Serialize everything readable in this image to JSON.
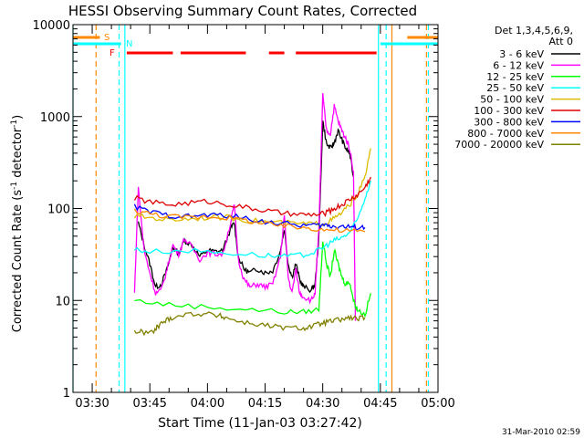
{
  "chart_data": {
    "type": "line",
    "title": "HESSI Observing Summary Count Rates, Corrected",
    "xlabel": "Start Time (11-Jan-03 03:27:42)",
    "ylabel_main": "Corrected Count Rate (s",
    "ylabel_sup1": "-1",
    "ylabel_mid": " detector",
    "ylabel_sup2": "-1",
    "ylabel_end": ")",
    "ylog": true,
    "x_domain_minutes": [
      0,
      95
    ],
    "ylim": [
      1,
      10000
    ],
    "x_ticks": [
      {
        "m": 5,
        "label": "03:30"
      },
      {
        "m": 20,
        "label": "03:45"
      },
      {
        "m": 35,
        "label": "04:00"
      },
      {
        "m": 50,
        "label": "04:15"
      },
      {
        "m": 65,
        "label": "04:30"
      },
      {
        "m": 80,
        "label": "04:45"
      },
      {
        "m": 95,
        "label": "05:00"
      }
    ],
    "y_ticks": [
      {
        "v": 1,
        "label": "1"
      },
      {
        "v": 10,
        "label": "10"
      },
      {
        "v": 100,
        "label": "100"
      },
      {
        "v": 1000,
        "label": "1000"
      },
      {
        "v": 10000,
        "label": "10000"
      }
    ],
    "legend_header": [
      "Det 1,3,4,5,6,9,",
      "Att 0"
    ],
    "series": [
      {
        "name": "3 - 6 keV",
        "color": "#000000",
        "points": [
          [
            17,
            70
          ],
          [
            18.5,
            40
          ],
          [
            20,
            25
          ],
          [
            21.5,
            14
          ],
          [
            23,
            15
          ],
          [
            24.5,
            22
          ],
          [
            26,
            38
          ],
          [
            27.5,
            32
          ],
          [
            29,
            45
          ],
          [
            31,
            40
          ],
          [
            33,
            30
          ],
          [
            35,
            35
          ],
          [
            37,
            34
          ],
          [
            39,
            35
          ],
          [
            41,
            60
          ],
          [
            42,
            70
          ],
          [
            43,
            30
          ],
          [
            44.5,
            22
          ],
          [
            46,
            20
          ],
          [
            48,
            22
          ],
          [
            50,
            20
          ],
          [
            52,
            21
          ],
          [
            54,
            35
          ],
          [
            55,
            60
          ],
          [
            56,
            25
          ],
          [
            57,
            18
          ],
          [
            58,
            25
          ],
          [
            59,
            17
          ],
          [
            60,
            14
          ],
          [
            62,
            13
          ],
          [
            63,
            15
          ],
          [
            64,
            50
          ],
          [
            65,
            900
          ],
          [
            66,
            500
          ],
          [
            67,
            450
          ],
          [
            68,
            520
          ],
          [
            69,
            700
          ],
          [
            70,
            560
          ],
          [
            71,
            450
          ],
          [
            72,
            400
          ],
          [
            73,
            220
          ]
        ]
      },
      {
        "name": "6 - 12 keV",
        "color": "#ff00ff",
        "points": [
          [
            16,
            12
          ],
          [
            17,
            170
          ],
          [
            18.5,
            35
          ],
          [
            20,
            20
          ],
          [
            21.5,
            12
          ],
          [
            23,
            13
          ],
          [
            24.5,
            22
          ],
          [
            26,
            40
          ],
          [
            27.5,
            32
          ],
          [
            29,
            47
          ],
          [
            31,
            38
          ],
          [
            33,
            28
          ],
          [
            35,
            33
          ],
          [
            37,
            32
          ],
          [
            39,
            32
          ],
          [
            41,
            70
          ],
          [
            42,
            110
          ],
          [
            43,
            28
          ],
          [
            44.5,
            17
          ],
          [
            46,
            14
          ],
          [
            48,
            15
          ],
          [
            50,
            14
          ],
          [
            52,
            15
          ],
          [
            54,
            30
          ],
          [
            55,
            85
          ],
          [
            56,
            18
          ],
          [
            57,
            12
          ],
          [
            58,
            22
          ],
          [
            59,
            12
          ],
          [
            60,
            11
          ],
          [
            62,
            10
          ],
          [
            63,
            12
          ],
          [
            64,
            60
          ],
          [
            65,
            1700
          ],
          [
            66,
            700
          ],
          [
            67,
            650
          ],
          [
            68,
            1300
          ],
          [
            69,
            900
          ],
          [
            70,
            700
          ],
          [
            71,
            580
          ],
          [
            72,
            450
          ],
          [
            73,
            250
          ],
          [
            73.5,
            6
          ]
        ]
      },
      {
        "name": "12 - 25 keV",
        "color": "#00ff00",
        "points": [
          [
            16,
            10
          ],
          [
            25,
            9
          ],
          [
            35,
            8.5
          ],
          [
            45,
            8
          ],
          [
            55,
            7.5
          ],
          [
            60,
            7.5
          ],
          [
            64,
            8
          ],
          [
            65,
            45
          ],
          [
            66,
            25
          ],
          [
            67,
            18
          ],
          [
            68,
            35
          ],
          [
            69,
            25
          ],
          [
            70,
            18
          ],
          [
            71,
            15
          ],
          [
            72,
            16
          ],
          [
            73,
            10
          ],
          [
            74,
            8
          ],
          [
            76,
            7
          ],
          [
            77.5,
            12
          ]
        ]
      },
      {
        "name": "25 - 50 keV",
        "color": "#00ffff",
        "points": [
          [
            16,
            36
          ],
          [
            20,
            34
          ],
          [
            30,
            35
          ],
          [
            40,
            33
          ],
          [
            50,
            31
          ],
          [
            55,
            30
          ],
          [
            60,
            31
          ],
          [
            64,
            35
          ],
          [
            66,
            40
          ],
          [
            68,
            45
          ],
          [
            70,
            48
          ],
          [
            72,
            55
          ],
          [
            74,
            75
          ],
          [
            76,
            130
          ],
          [
            77.5,
            200
          ]
        ]
      },
      {
        "name": "50 - 100 keV",
        "color": "#ddbb00",
        "points": [
          [
            16,
            82
          ],
          [
            20,
            80
          ],
          [
            25,
            75
          ],
          [
            30,
            78
          ],
          [
            35,
            80
          ],
          [
            40,
            80
          ],
          [
            45,
            75
          ],
          [
            50,
            72
          ],
          [
            55,
            70
          ],
          [
            60,
            68
          ],
          [
            64,
            68
          ],
          [
            66,
            70
          ],
          [
            68,
            78
          ],
          [
            70,
            90
          ],
          [
            72,
            110
          ],
          [
            74,
            140
          ],
          [
            76,
            220
          ],
          [
            77.5,
            450
          ]
        ]
      },
      {
        "name": "100 - 300 keV",
        "color": "#dd0000",
        "points": [
          [
            16,
            130
          ],
          [
            20,
            118
          ],
          [
            25,
            110
          ],
          [
            30,
            115
          ],
          [
            35,
            120
          ],
          [
            40,
            112
          ],
          [
            45,
            102
          ],
          [
            50,
            95
          ],
          [
            55,
            88
          ],
          [
            60,
            85
          ],
          [
            64,
            86
          ],
          [
            66,
            90
          ],
          [
            68,
            100
          ],
          [
            70,
            110
          ],
          [
            72,
            125
          ],
          [
            74,
            140
          ],
          [
            76,
            170
          ],
          [
            77.5,
            220
          ]
        ]
      },
      {
        "name": "300 - 800 keV",
        "color": "#0000ff",
        "points": [
          [
            16,
            105
          ],
          [
            20,
            92
          ],
          [
            25,
            84
          ],
          [
            30,
            82
          ],
          [
            35,
            85
          ],
          [
            40,
            84
          ],
          [
            45,
            78
          ],
          [
            50,
            72
          ],
          [
            55,
            68
          ],
          [
            60,
            66
          ],
          [
            64,
            65
          ],
          [
            66,
            66
          ],
          [
            68,
            64
          ],
          [
            70,
            64
          ],
          [
            72,
            63
          ],
          [
            74,
            62
          ],
          [
            76,
            62
          ]
        ]
      },
      {
        "name": "800 - 7000 keV",
        "color": "#ff8800",
        "points": [
          [
            16,
            95
          ],
          [
            20,
            88
          ],
          [
            25,
            82
          ],
          [
            30,
            80
          ],
          [
            35,
            82
          ],
          [
            40,
            80
          ],
          [
            45,
            74
          ],
          [
            50,
            68
          ],
          [
            55,
            64
          ],
          [
            60,
            62
          ],
          [
            64,
            60
          ],
          [
            68,
            58
          ],
          [
            72,
            57
          ],
          [
            76,
            56
          ]
        ]
      },
      {
        "name": "7000 - 20000 keV",
        "color": "#808000",
        "points": [
          [
            16,
            4.6
          ],
          [
            18,
            4.5
          ],
          [
            21,
            4.5
          ],
          [
            22,
            5.2
          ],
          [
            24,
            6
          ],
          [
            26,
            6.6
          ],
          [
            30,
            7.1
          ],
          [
            34,
            7.2
          ],
          [
            38,
            6.8
          ],
          [
            40,
            6.5
          ],
          [
            44,
            5.8
          ],
          [
            48,
            5.5
          ],
          [
            52,
            5.2
          ],
          [
            56,
            5
          ],
          [
            60,
            5
          ],
          [
            62,
            5.2
          ],
          [
            64,
            5.5
          ],
          [
            66,
            5.8
          ],
          [
            68,
            6
          ],
          [
            70,
            6.2
          ],
          [
            72,
            6.5
          ],
          [
            74,
            6.3
          ],
          [
            76,
            6.5
          ]
        ]
      }
    ],
    "annotations": {
      "s_label": "S",
      "n_label": "N",
      "f_label": "F",
      "flag_color_s": "#ff8800",
      "flag_color_n": "#00ffff",
      "flag_color_f": "#ff0000"
    },
    "flags": {
      "s_segments": [
        [
          0,
          7
        ],
        [
          87,
          95
        ]
      ],
      "n_segments": [
        [
          0,
          12.5
        ],
        [
          80,
          95
        ]
      ],
      "f_segments": [
        [
          14,
          26
        ],
        [
          28,
          45
        ],
        [
          51,
          55
        ],
        [
          58,
          79
        ]
      ]
    },
    "vlines": [
      {
        "m": 0,
        "color": "#00ffff",
        "dash": false
      },
      {
        "m": 6,
        "color": "#ff8800",
        "dash": true
      },
      {
        "m": 12,
        "color": "#00ffff",
        "dash": true
      },
      {
        "m": 13.5,
        "color": "#00ffff",
        "dash": false
      },
      {
        "m": 79.5,
        "color": "#00ffff",
        "dash": false
      },
      {
        "m": 81.5,
        "color": "#00ffff",
        "dash": true
      },
      {
        "m": 83,
        "color": "#ff8800",
        "dash": false
      },
      {
        "m": 92,
        "color": "#ff8800",
        "dash": true
      },
      {
        "m": 92.5,
        "color": "#00ffff",
        "dash": true
      }
    ],
    "footer_date": "31-Mar-2010 02:59"
  }
}
